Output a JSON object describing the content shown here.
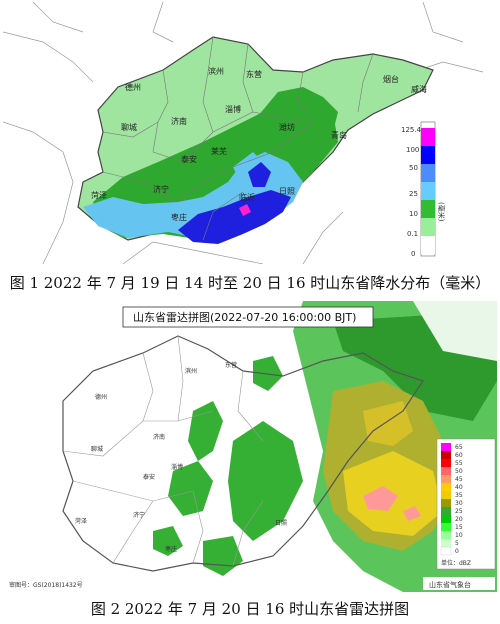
{
  "figure1": {
    "caption": "图 1 2022 年 7 月 19 日 14 时至 20 日 16 时山东省降水分布（毫米）",
    "cities": [
      "德州",
      "滨州",
      "东营",
      "烟台",
      "威海",
      "聊城",
      "济南",
      "淄博",
      "潍坊",
      "青岛",
      "泰安",
      "莱芜",
      "济宁",
      "临沂",
      "日照",
      "菏泽",
      "枣庄"
    ],
    "legend": {
      "levels": [
        "125.4",
        "100",
        "50",
        "25",
        "10",
        "0.1",
        "0"
      ],
      "colors": [
        "#ff00ff",
        "#0000ff",
        "#4d8cff",
        "#66ccff",
        "#33bb33",
        "#99ee99",
        "#ffffff"
      ],
      "unit_label": "(毫米)"
    }
  },
  "figure2": {
    "caption": "图 2 2022 年 7 月 20 日 16 时山东省雷达拼图",
    "title": "山东省雷达拼图(2022-07-20 16:00:00 BJT)",
    "cities": [
      "滨州",
      "东营",
      "德州",
      "济南",
      "聊城",
      "泰安",
      "淄博",
      "济宁",
      "菏泽",
      "枣庄",
      "日照"
    ],
    "legend": {
      "levels": [
        "65",
        "60",
        "55",
        "50",
        "45",
        "40",
        "35",
        "30",
        "25",
        "20",
        "15",
        "10",
        "5",
        "0"
      ],
      "colors": [
        "#ff00ff",
        "#cc0000",
        "#ff0000",
        "#ff6666",
        "#ff9966",
        "#ffcc00",
        "#eecc00",
        "#999900",
        "#33aa33",
        "#00cc00",
        "#33ff33",
        "#99ff99",
        "#ccffcc",
        "#ffffff"
      ],
      "unit_label": "单位：dBZ"
    },
    "source": "山东省气象台",
    "map_no": "审图号：GS(2018)1432号"
  }
}
